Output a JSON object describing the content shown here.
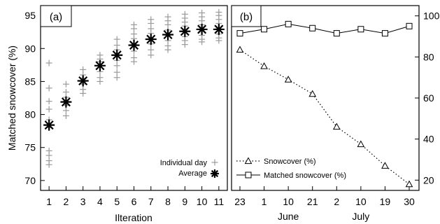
{
  "chart_data": [
    {
      "panel": "(a)",
      "type": "scatter",
      "xlabel": "Ilteration",
      "ylabel": "Matched snowcover (%)",
      "x_ticks": [
        1,
        2,
        3,
        4,
        5,
        6,
        7,
        8,
        9,
        10,
        11
      ],
      "y_ticks": [
        70,
        75,
        80,
        85,
        90,
        95
      ],
      "xlim": [
        0.5,
        11.5
      ],
      "ylim": [
        68.5,
        96.5
      ],
      "grid": false,
      "legend_position": "bottom-right",
      "series": [
        {
          "name": "Individual day",
          "marker": "plus",
          "color": "#9a9a9a",
          "points": [
            [
              1,
              87.8
            ],
            [
              1,
              84.0
            ],
            [
              1,
              82.0
            ],
            [
              1,
              80.8
            ],
            [
              1,
              79.2
            ],
            [
              1,
              78.0
            ],
            [
              1,
              74.5
            ],
            [
              1,
              73.8
            ],
            [
              1,
              73.0
            ],
            [
              1,
              72.4
            ],
            [
              2,
              84.6
            ],
            [
              2,
              83.4
            ],
            [
              2,
              82.6
            ],
            [
              2,
              82.0
            ],
            [
              2,
              81.4
            ],
            [
              2,
              80.6
            ],
            [
              2,
              79.8
            ],
            [
              3,
              86.8
            ],
            [
              3,
              86.0
            ],
            [
              3,
              85.5
            ],
            [
              3,
              85.0
            ],
            [
              3,
              84.6
            ],
            [
              3,
              83.8
            ],
            [
              3,
              83.2
            ],
            [
              4,
              89.0
            ],
            [
              4,
              88.4
            ],
            [
              4,
              88.0
            ],
            [
              4,
              87.4
            ],
            [
              4,
              86.5
            ],
            [
              4,
              85.6
            ],
            [
              4,
              85.0
            ],
            [
              5,
              91.4
            ],
            [
              5,
              90.5
            ],
            [
              5,
              89.8
            ],
            [
              5,
              89.0
            ],
            [
              5,
              88.2
            ],
            [
              5,
              87.4
            ],
            [
              5,
              86.4
            ],
            [
              5,
              85.6
            ],
            [
              6,
              93.6
            ],
            [
              6,
              93.0
            ],
            [
              6,
              92.2
            ],
            [
              6,
              91.5
            ],
            [
              6,
              90.6
            ],
            [
              6,
              89.6
            ],
            [
              6,
              88.6
            ],
            [
              6,
              88.0
            ],
            [
              7,
              94.4
            ],
            [
              7,
              93.8
            ],
            [
              7,
              93.0
            ],
            [
              7,
              92.3
            ],
            [
              7,
              91.5
            ],
            [
              7,
              90.7
            ],
            [
              7,
              89.8
            ],
            [
              7,
              89.0
            ],
            [
              8,
              94.8
            ],
            [
              8,
              94.2
            ],
            [
              8,
              93.6
            ],
            [
              8,
              92.8
            ],
            [
              8,
              92.0
            ],
            [
              8,
              91.2
            ],
            [
              8,
              90.4
            ],
            [
              8,
              89.8
            ],
            [
              9,
              95.2
            ],
            [
              9,
              94.6
            ],
            [
              9,
              94.0
            ],
            [
              9,
              93.4
            ],
            [
              9,
              92.6
            ],
            [
              9,
              91.8
            ],
            [
              9,
              91.2
            ],
            [
              9,
              90.6
            ],
            [
              10,
              95.4
            ],
            [
              10,
              94.8
            ],
            [
              10,
              94.2
            ],
            [
              10,
              93.6
            ],
            [
              10,
              92.8
            ],
            [
              10,
              92.0
            ],
            [
              10,
              91.4
            ],
            [
              10,
              91.0
            ],
            [
              11,
              95.5
            ],
            [
              11,
              95.0
            ],
            [
              11,
              94.4
            ],
            [
              11,
              93.8
            ],
            [
              11,
              93.0
            ],
            [
              11,
              92.2
            ],
            [
              11,
              91.6
            ],
            [
              11,
              91.2
            ]
          ]
        },
        {
          "name": "Average",
          "marker": "asterisk",
          "color": "#000000",
          "x": [
            1,
            2,
            3,
            4,
            5,
            6,
            7,
            8,
            9,
            10,
            11
          ],
          "values": [
            78.4,
            81.9,
            85.1,
            87.4,
            89.0,
            90.5,
            91.4,
            92.1,
            92.6,
            92.9,
            92.9
          ]
        }
      ]
    },
    {
      "panel": "(b)",
      "type": "line",
      "ylim": [
        15,
        105
      ],
      "y_ticks": [
        20,
        40,
        60,
        80,
        100
      ],
      "y_axis_side": "right",
      "x_tick_labels": [
        "23",
        "1",
        "10",
        "21",
        "2",
        "10",
        "19",
        "30"
      ],
      "x_month_labels": [
        "June",
        "July"
      ],
      "grid": false,
      "legend_position": "bottom-left",
      "series": [
        {
          "name": "Snowcover (%)",
          "marker": "triangle",
          "line_style": "dotted",
          "values": [
            83.5,
            75.5,
            69.0,
            62.0,
            46.0,
            37.5,
            27.0,
            18.0
          ]
        },
        {
          "name": "Matched snowcover (%)",
          "marker": "square",
          "line_style": "solid",
          "values": [
            91.5,
            93.5,
            96.0,
            94.0,
            91.5,
            93.5,
            91.5,
            95.0
          ]
        }
      ]
    }
  ]
}
